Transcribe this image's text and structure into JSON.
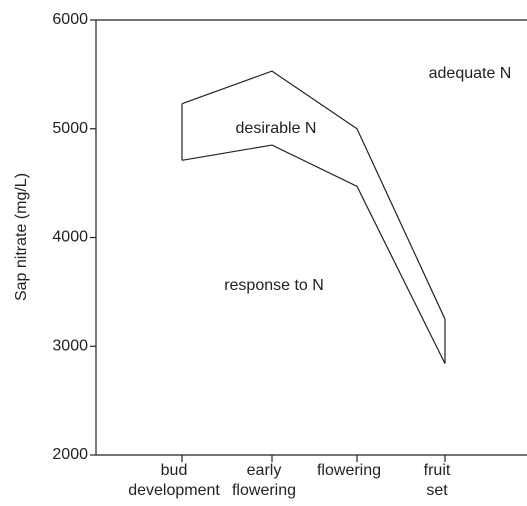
{
  "chart_data": {
    "type": "line",
    "ylabel": "Sap nitrate (mg/L)",
    "categories": [
      [
        "bud",
        "development"
      ],
      [
        "early",
        "flowering"
      ],
      [
        "flowering"
      ],
      [
        "fruit",
        "set"
      ]
    ],
    "series": [
      {
        "color": "#222222",
        "values": [
          5230,
          5530,
          5000,
          3250
        ]
      },
      {
        "color": "#222222",
        "values": [
          4710,
          4850,
          4470,
          2840
        ]
      }
    ],
    "annotations": [
      "adequate N",
      "desirable N",
      "response to N"
    ],
    "ylim": [
      2000,
      6000
    ],
    "yticks": [
      2000,
      3000,
      4000,
      5000,
      6000
    ]
  }
}
